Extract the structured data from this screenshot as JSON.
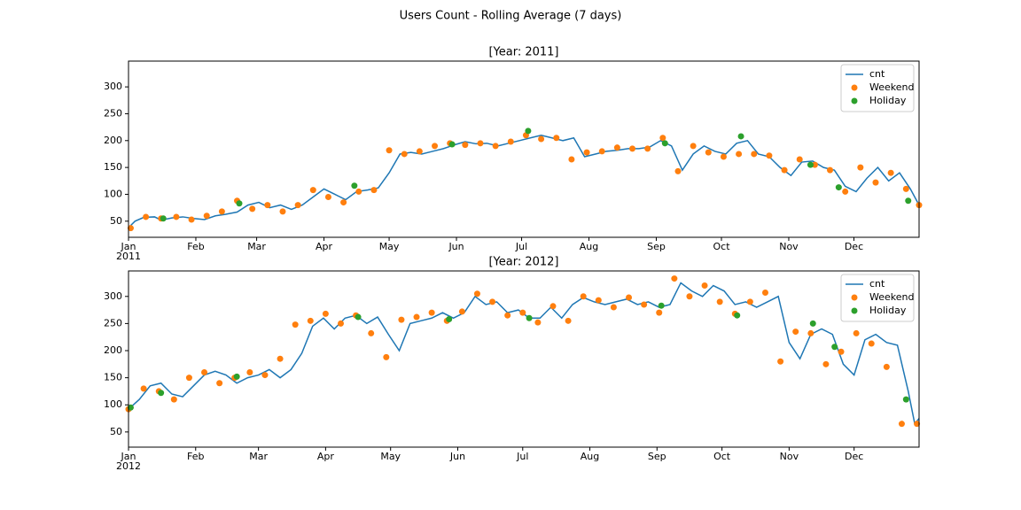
{
  "title": "Users Count - Rolling Average (7 days)",
  "chart_data": [
    {
      "type": "line",
      "title": "[Year: 2011]",
      "x_year_label": "2011",
      "xlim": [
        0,
        364
      ],
      "ylim": [
        20,
        348
      ],
      "yticks": [
        50,
        100,
        150,
        200,
        250,
        300
      ],
      "xticks": [
        {
          "value": 0,
          "label": "Jan"
        },
        {
          "value": 31,
          "label": "Feb"
        },
        {
          "value": 59,
          "label": "Mar"
        },
        {
          "value": 90,
          "label": "Apr"
        },
        {
          "value": 120,
          "label": "May"
        },
        {
          "value": 151,
          "label": "Jun"
        },
        {
          "value": 181,
          "label": "Jul"
        },
        {
          "value": 212,
          "label": "Aug"
        },
        {
          "value": 243,
          "label": "Sep"
        },
        {
          "value": 273,
          "label": "Oct"
        },
        {
          "value": 304,
          "label": "Nov"
        },
        {
          "value": 334,
          "label": "Dec"
        }
      ],
      "legend": "upper right",
      "series": [
        {
          "name": "cnt",
          "type": "line",
          "color": "#1f77b4",
          "x": [
            0,
            3,
            7,
            12,
            15,
            20,
            25,
            30,
            35,
            40,
            45,
            50,
            55,
            60,
            65,
            70,
            75,
            80,
            85,
            90,
            95,
            100,
            105,
            110,
            115,
            120,
            125,
            130,
            135,
            140,
            145,
            150,
            155,
            160,
            165,
            170,
            175,
            180,
            185,
            190,
            195,
            200,
            205,
            210,
            215,
            220,
            225,
            230,
            235,
            240,
            245,
            250,
            255,
            260,
            265,
            270,
            275,
            280,
            285,
            290,
            295,
            300,
            305,
            310,
            315,
            320,
            325,
            330,
            335,
            340,
            345,
            350,
            355,
            360,
            364
          ],
          "values": [
            38,
            50,
            57,
            58,
            52,
            56,
            58,
            55,
            53,
            60,
            63,
            67,
            80,
            85,
            75,
            80,
            72,
            80,
            95,
            110,
            100,
            90,
            105,
            108,
            112,
            140,
            175,
            178,
            175,
            180,
            185,
            192,
            198,
            194,
            195,
            190,
            195,
            200,
            205,
            210,
            205,
            200,
            205,
            170,
            175,
            180,
            182,
            185,
            185,
            188,
            200,
            190,
            145,
            175,
            190,
            180,
            175,
            195,
            200,
            175,
            170,
            150,
            135,
            160,
            162,
            150,
            145,
            115,
            105,
            130,
            150,
            125,
            140,
            110,
            80
          ]
        },
        {
          "name": "Weekend",
          "type": "scatter",
          "color": "#ff7f0e",
          "x": [
            1,
            8,
            15,
            22,
            29,
            36,
            43,
            50,
            57,
            64,
            71,
            78,
            85,
            92,
            99,
            106,
            113,
            120,
            127,
            134,
            141,
            148,
            155,
            162,
            169,
            176,
            183,
            190,
            197,
            204,
            211,
            218,
            225,
            232,
            239,
            246,
            253,
            260,
            267,
            274,
            281,
            288,
            295,
            302,
            309,
            316,
            323,
            330,
            337,
            344,
            351,
            358,
            364
          ],
          "values": [
            37,
            58,
            55,
            58,
            53,
            60,
            68,
            88,
            73,
            80,
            68,
            80,
            108,
            95,
            85,
            105,
            108,
            182,
            175,
            180,
            190,
            195,
            192,
            195,
            190,
            198,
            210,
            203,
            205,
            165,
            178,
            180,
            187,
            185,
            185,
            205,
            143,
            190,
            178,
            170,
            175,
            175,
            172,
            145,
            165,
            155,
            145,
            105,
            150,
            122,
            140,
            110,
            80
          ]
        },
        {
          "name": "Holiday",
          "type": "scatter",
          "color": "#2ca02c",
          "x": [
            16,
            51,
            104,
            149,
            184,
            247,
            282,
            314,
            327,
            359
          ],
          "values": [
            55,
            83,
            116,
            193,
            218,
            195,
            208,
            155,
            113,
            88
          ]
        }
      ]
    },
    {
      "type": "line",
      "title": "[Year: 2012]",
      "x_year_label": "2012",
      "xlim": [
        0,
        365
      ],
      "ylim": [
        22,
        347
      ],
      "yticks": [
        50,
        100,
        150,
        200,
        250,
        300
      ],
      "xticks": [
        {
          "value": 0,
          "label": "Jan"
        },
        {
          "value": 31,
          "label": "Feb"
        },
        {
          "value": 60,
          "label": "Mar"
        },
        {
          "value": 91,
          "label": "Apr"
        },
        {
          "value": 121,
          "label": "May"
        },
        {
          "value": 152,
          "label": "Jun"
        },
        {
          "value": 182,
          "label": "Jul"
        },
        {
          "value": 213,
          "label": "Aug"
        },
        {
          "value": 244,
          "label": "Sep"
        },
        {
          "value": 274,
          "label": "Oct"
        },
        {
          "value": 305,
          "label": "Nov"
        },
        {
          "value": 335,
          "label": "Dec"
        }
      ],
      "legend": "upper right",
      "series": [
        {
          "name": "cnt",
          "type": "line",
          "color": "#1f77b4",
          "x": [
            0,
            5,
            10,
            15,
            20,
            25,
            30,
            35,
            40,
            45,
            50,
            55,
            60,
            65,
            70,
            75,
            80,
            85,
            90,
            95,
            100,
            105,
            110,
            115,
            120,
            125,
            130,
            135,
            140,
            145,
            150,
            155,
            160,
            165,
            170,
            175,
            180,
            185,
            190,
            195,
            200,
            205,
            210,
            215,
            220,
            225,
            230,
            235,
            240,
            245,
            250,
            255,
            260,
            265,
            270,
            275,
            280,
            285,
            290,
            295,
            300,
            305,
            310,
            315,
            320,
            325,
            330,
            335,
            340,
            345,
            350,
            355,
            360,
            363,
            365
          ],
          "values": [
            92,
            110,
            135,
            140,
            120,
            115,
            135,
            155,
            162,
            155,
            140,
            150,
            155,
            165,
            150,
            165,
            195,
            245,
            260,
            240,
            260,
            265,
            250,
            262,
            230,
            200,
            250,
            255,
            260,
            270,
            260,
            270,
            300,
            285,
            290,
            270,
            275,
            260,
            260,
            280,
            260,
            285,
            298,
            290,
            285,
            290,
            295,
            285,
            290,
            280,
            285,
            325,
            310,
            300,
            320,
            310,
            285,
            290,
            280,
            290,
            300,
            215,
            185,
            230,
            240,
            230,
            175,
            155,
            220,
            230,
            215,
            210,
            125,
            65,
            75
          ]
        },
        {
          "name": "Weekend",
          "type": "scatter",
          "color": "#ff7f0e",
          "x": [
            0,
            7,
            14,
            21,
            28,
            35,
            42,
            49,
            56,
            63,
            70,
            77,
            84,
            91,
            98,
            105,
            112,
            119,
            126,
            133,
            140,
            147,
            154,
            161,
            168,
            175,
            182,
            189,
            196,
            203,
            210,
            217,
            224,
            231,
            238,
            245,
            252,
            259,
            266,
            273,
            280,
            287,
            294,
            301,
            308,
            315,
            322,
            329,
            336,
            343,
            350,
            357,
            364
          ],
          "values": [
            92,
            130,
            125,
            110,
            150,
            160,
            140,
            150,
            160,
            155,
            185,
            248,
            255,
            268,
            250,
            265,
            232,
            188,
            257,
            262,
            270,
            255,
            272,
            305,
            290,
            265,
            270,
            252,
            282,
            255,
            300,
            293,
            280,
            298,
            285,
            270,
            333,
            300,
            320,
            290,
            268,
            290,
            307,
            180,
            235,
            232,
            175,
            198,
            232,
            213,
            170,
            65,
            65
          ]
        },
        {
          "name": "Holiday",
          "type": "scatter",
          "color": "#2ca02c",
          "x": [
            1,
            15,
            50,
            106,
            148,
            185,
            246,
            281,
            316,
            326,
            359
          ],
          "values": [
            95,
            122,
            152,
            262,
            258,
            260,
            283,
            265,
            250,
            207,
            110
          ]
        }
      ]
    }
  ]
}
